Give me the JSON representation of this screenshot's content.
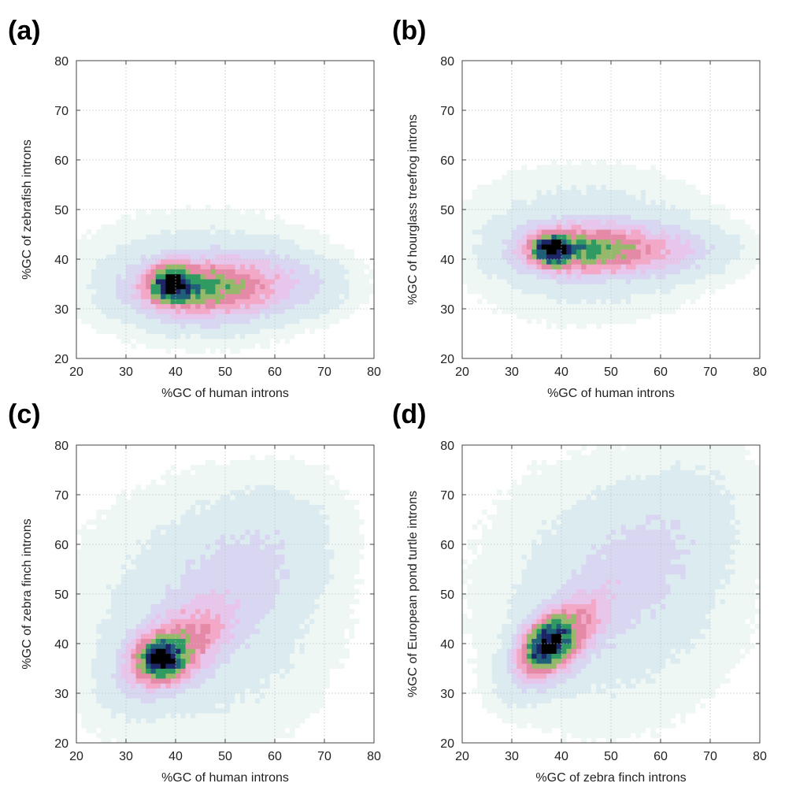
{
  "figure": {
    "panels": [
      {
        "label": "(a)"
      },
      {
        "label": "(b)"
      },
      {
        "label": "(c)"
      },
      {
        "label": "(d)"
      }
    ]
  },
  "colormap": [
    "#ffffff",
    "#eef7f4",
    "#dcebf0",
    "#d9d6f2",
    "#e8c6ec",
    "#f2a8c6",
    "#e58aa6",
    "#96b86a",
    "#2f9a62",
    "#1f5f78",
    "#1c2566",
    "#000000"
  ],
  "chart_data": [
    {
      "type": "heatmap",
      "panel": "(a)",
      "xlabel": "%GC of human introns",
      "ylabel": "%GC of zebrafish introns",
      "xlim": [
        20,
        80
      ],
      "ylim": [
        20,
        80
      ],
      "xticks": [
        "20",
        "30",
        "40",
        "50",
        "60",
        "70",
        "80"
      ],
      "yticks": [
        "20",
        "30",
        "40",
        "50",
        "60",
        "70",
        "80"
      ],
      "density_components": [
        {
          "mx": 39,
          "my": 35,
          "sx": 2.5,
          "sy": 2.2,
          "w": 1.0,
          "rho": 0
        },
        {
          "mx": 44,
          "my": 34,
          "sx": 7,
          "sy": 3.3,
          "w": 0.5,
          "rho": 0
        },
        {
          "mx": 54,
          "my": 35,
          "sx": 9,
          "sy": 3.5,
          "w": 0.22,
          "rho": 0
        },
        {
          "mx": 45,
          "my": 36,
          "sx": 14,
          "sy": 7,
          "w": 0.05,
          "rho": 0
        }
      ]
    },
    {
      "type": "heatmap",
      "panel": "(b)",
      "xlabel": "%GC of human introns",
      "ylabel": "%GC of hourglass treefrog introns",
      "xlim": [
        20,
        80
      ],
      "ylim": [
        20,
        80
      ],
      "xticks": [
        "20",
        "30",
        "40",
        "50",
        "60",
        "70",
        "80"
      ],
      "yticks": [
        "20",
        "30",
        "40",
        "50",
        "60",
        "70",
        "80"
      ],
      "density_components": [
        {
          "mx": 38,
          "my": 42,
          "sx": 2.5,
          "sy": 2.0,
          "w": 1.0,
          "rho": 0
        },
        {
          "mx": 44,
          "my": 42,
          "sx": 7,
          "sy": 2.8,
          "w": 0.5,
          "rho": 0
        },
        {
          "mx": 55,
          "my": 42,
          "sx": 9,
          "sy": 3.0,
          "w": 0.22,
          "rho": 0
        },
        {
          "mx": 45,
          "my": 43,
          "sx": 14,
          "sy": 8,
          "w": 0.05,
          "rho": 0
        }
      ]
    },
    {
      "type": "heatmap",
      "panel": "(c)",
      "xlabel": "%GC of human introns",
      "ylabel": "%GC of zebra finch introns",
      "xlim": [
        20,
        80
      ],
      "ylim": [
        20,
        80
      ],
      "xticks": [
        "20",
        "30",
        "40",
        "50",
        "60",
        "70",
        "80"
      ],
      "yticks": [
        "20",
        "30",
        "40",
        "50",
        "60",
        "70",
        "80"
      ],
      "density_components": [
        {
          "mx": 37,
          "my": 37,
          "sx": 2.8,
          "sy": 2.5,
          "w": 1.0,
          "rho": 0
        },
        {
          "mx": 40,
          "my": 39,
          "sx": 6,
          "sy": 5,
          "w": 0.4,
          "rho": 0.5
        },
        {
          "mx": 52,
          "my": 52,
          "sx": 10,
          "sy": 10,
          "w": 0.08,
          "rho": 0.45
        },
        {
          "mx": 45,
          "my": 45,
          "sx": 16,
          "sy": 16,
          "w": 0.03,
          "rho": 0
        }
      ]
    },
    {
      "type": "heatmap",
      "panel": "(d)",
      "xlabel": "%GC of zebra finch introns",
      "ylabel": "%GC of European pond turtle introns",
      "xlim": [
        20,
        80
      ],
      "ylim": [
        20,
        80
      ],
      "xticks": [
        "20",
        "30",
        "40",
        "50",
        "60",
        "70",
        "80"
      ],
      "yticks": [
        "20",
        "30",
        "40",
        "50",
        "60",
        "70",
        "80"
      ],
      "density_components": [
        {
          "mx": 37,
          "my": 40,
          "sx": 2.8,
          "sy": 3.0,
          "w": 1.0,
          "rho": 0.3
        },
        {
          "mx": 40,
          "my": 41,
          "sx": 5,
          "sy": 5,
          "w": 0.45,
          "rho": 0.6
        },
        {
          "mx": 55,
          "my": 55,
          "sx": 11,
          "sy": 11,
          "w": 0.07,
          "rho": 0.55
        },
        {
          "mx": 50,
          "my": 50,
          "sx": 16,
          "sy": 16,
          "w": 0.03,
          "rho": 0
        }
      ]
    }
  ]
}
